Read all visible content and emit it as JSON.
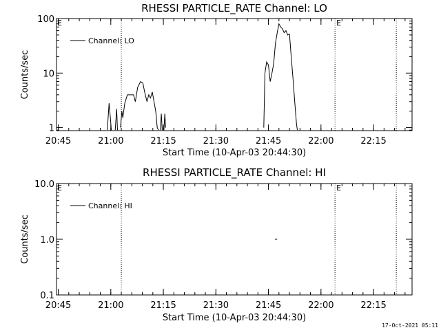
{
  "chart_data": [
    {
      "type": "line",
      "title": "RHESSI PARTICLE_RATE Channel: LO",
      "xlabel": "Start Time (10-Apr-03 20:44:30)",
      "ylabel": "Counts/sec",
      "ylog": true,
      "ylim": [
        0.88,
        100
      ],
      "xlim": [
        "20:44:30",
        "22:26:00"
      ],
      "x_ticks": [
        "20:45",
        "21:00",
        "21:15",
        "21:30",
        "21:45",
        "22:00",
        "22:15"
      ],
      "y_ticks": [
        "1",
        "10",
        "100"
      ],
      "legend": {
        "entries": [
          "Channel: LO"
        ],
        "position": "top-left"
      },
      "vlines": [
        {
          "time": "21:03:00",
          "style": "dotted",
          "label": ""
        },
        {
          "time": "22:04:00",
          "style": "dotted",
          "label": "E"
        },
        {
          "time": "22:21:30",
          "style": "dotted",
          "label": ""
        }
      ],
      "corner_marker": "E",
      "series": [
        {
          "name": "Channel: LO",
          "segments": [
            [
              [
                "20:59:00",
                0.9
              ],
              [
                "20:59:30",
                2.8
              ],
              [
                "20:59:50",
                1.6
              ],
              [
                "21:00:10",
                0.9
              ]
            ],
            [
              [
                "21:01:15",
                0.9
              ],
              [
                "21:01:40",
                2.2
              ],
              [
                "21:01:55",
                0.9
              ]
            ],
            [
              [
                "21:02:45",
                1.0
              ],
              [
                "21:03:10",
                2.0
              ],
              [
                "21:03:25",
                1.5
              ],
              [
                "21:04:00",
                2.8
              ],
              [
                "21:04:45",
                4.0
              ],
              [
                "21:05:30",
                4.0
              ],
              [
                "21:06:30",
                4.0
              ],
              [
                "21:07:00",
                3.0
              ],
              [
                "21:07:40",
                5.5
              ],
              [
                "21:08:30",
                7.0
              ],
              [
                "21:09:10",
                6.5
              ],
              [
                "21:09:40",
                4.5
              ],
              [
                "21:10:20",
                3.0
              ],
              [
                "21:10:50",
                4.0
              ],
              [
                "21:11:20",
                3.5
              ],
              [
                "21:11:50",
                4.5
              ],
              [
                "21:12:20",
                3.0
              ],
              [
                "21:12:50",
                2.0
              ],
              [
                "21:13:15",
                1.0
              ],
              [
                "21:13:35",
                0.9
              ]
            ],
            [
              [
                "21:14:10",
                0.9
              ],
              [
                "21:14:25",
                1.8
              ],
              [
                "21:14:40",
                0.9
              ]
            ],
            [
              [
                "21:15:10",
                0.9
              ],
              [
                "21:15:25",
                1.8
              ],
              [
                "21:15:40",
                1.0
              ]
            ],
            [
              [
                "21:43:40",
                1.0
              ],
              [
                "21:44:00",
                10.0
              ],
              [
                "21:44:30",
                16.0
              ],
              [
                "21:45:00",
                14.0
              ],
              [
                "21:45:30",
                7.0
              ],
              [
                "21:46:00",
                10.0
              ],
              [
                "21:46:30",
                15.0
              ],
              [
                "21:47:00",
                35.0
              ],
              [
                "21:47:30",
                55.0
              ],
              [
                "21:48:00",
                80.0
              ],
              [
                "21:48:30",
                70.0
              ],
              [
                "21:49:00",
                65.0
              ],
              [
                "21:49:30",
                55.0
              ],
              [
                "21:50:00",
                60.0
              ],
              [
                "21:50:30",
                50.0
              ],
              [
                "21:51:00",
                52.0
              ],
              [
                "21:51:30",
                20.0
              ],
              [
                "21:52:00",
                8.0
              ],
              [
                "21:52:30",
                3.0
              ],
              [
                "21:53:00",
                1.2
              ],
              [
                "21:53:15",
                0.9
              ]
            ]
          ]
        }
      ]
    },
    {
      "type": "line",
      "title": "RHESSI PARTICLE_RATE Channel: HI",
      "xlabel": "Start Time (10-Apr-03 20:44:30)",
      "ylabel": "Counts/sec",
      "ylog": true,
      "ylim": [
        0.1,
        10
      ],
      "xlim": [
        "20:44:30",
        "22:26:00"
      ],
      "x_ticks": [
        "20:45",
        "21:00",
        "21:15",
        "21:30",
        "21:45",
        "22:00",
        "22:15"
      ],
      "y_ticks": [
        "0.1",
        "1.0",
        "10.0"
      ],
      "legend": {
        "entries": [
          "Channel: HI"
        ],
        "position": "top-left"
      },
      "vlines": [
        {
          "time": "21:03:00",
          "style": "dotted",
          "label": ""
        },
        {
          "time": "22:04:00",
          "style": "dotted",
          "label": "E"
        },
        {
          "time": "22:21:30",
          "style": "dotted",
          "label": ""
        }
      ],
      "corner_marker": "E",
      "series": [
        {
          "name": "Channel: HI",
          "segments": [
            [
              [
                "21:46:50",
                1.0
              ],
              [
                "21:47:30",
                1.0
              ]
            ]
          ]
        }
      ]
    }
  ],
  "timestamp": "17-Oct-2021 05:11"
}
